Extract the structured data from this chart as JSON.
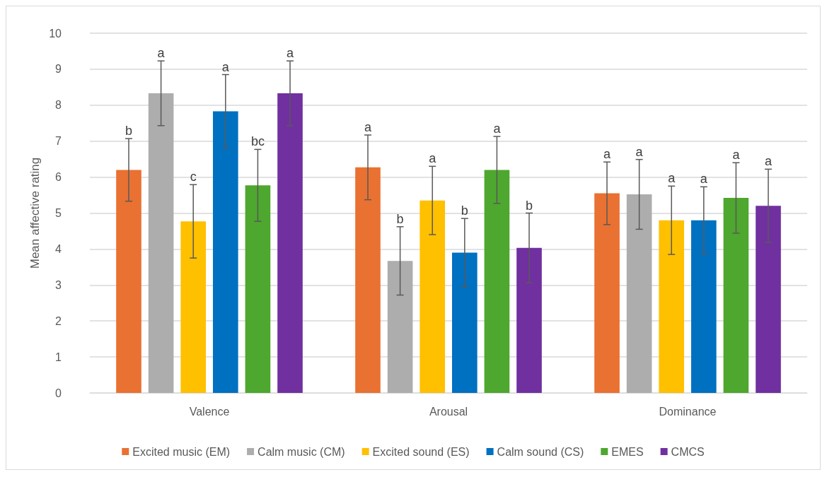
{
  "chart_data": {
    "type": "bar",
    "ylabel": "Mean affective rating",
    "categories": [
      "Valence",
      "Arousal",
      "Dominance"
    ],
    "series": [
      {
        "name": "Excited music (EM)",
        "color": "#e97132",
        "values": [
          6.2,
          6.27,
          5.55
        ],
        "errors": [
          0.87,
          0.9,
          0.87
        ],
        "value_labels": [
          "b",
          "a",
          "a"
        ]
      },
      {
        "name": "Calm music (CM)",
        "color": "#adadad",
        "values": [
          8.33,
          3.67,
          5.52
        ],
        "errors": [
          0.9,
          0.95,
          0.97
        ],
        "value_labels": [
          "a",
          "b",
          "a"
        ]
      },
      {
        "name": "Excited sound (ES)",
        "color": "#ffc000",
        "values": [
          4.77,
          5.35,
          4.8
        ],
        "errors": [
          1.02,
          0.95,
          0.95
        ],
        "value_labels": [
          "c",
          "a",
          "a"
        ]
      },
      {
        "name": "Calm sound (CS)",
        "color": "#0070c0",
        "values": [
          7.83,
          3.9,
          4.8
        ],
        "errors": [
          1.02,
          0.95,
          0.93
        ],
        "value_labels": [
          "a",
          "b",
          "a"
        ]
      },
      {
        "name": "EMES",
        "color": "#4ea72e",
        "values": [
          5.77,
          6.2,
          5.42
        ],
        "errors": [
          1.0,
          0.93,
          0.98
        ],
        "value_labels": [
          "bc",
          "a",
          "a"
        ]
      },
      {
        "name": "CMCS",
        "color": "#7030a0",
        "values": [
          8.33,
          4.03,
          5.2
        ],
        "errors": [
          0.9,
          0.97,
          1.02
        ],
        "value_labels": [
          "a",
          "b",
          "a"
        ]
      }
    ],
    "ylim": [
      0,
      10
    ],
    "yticks": [
      0,
      1,
      2,
      3,
      4,
      5,
      6,
      7,
      8,
      9,
      10
    ],
    "grid": "y",
    "legend": "bottom"
  }
}
